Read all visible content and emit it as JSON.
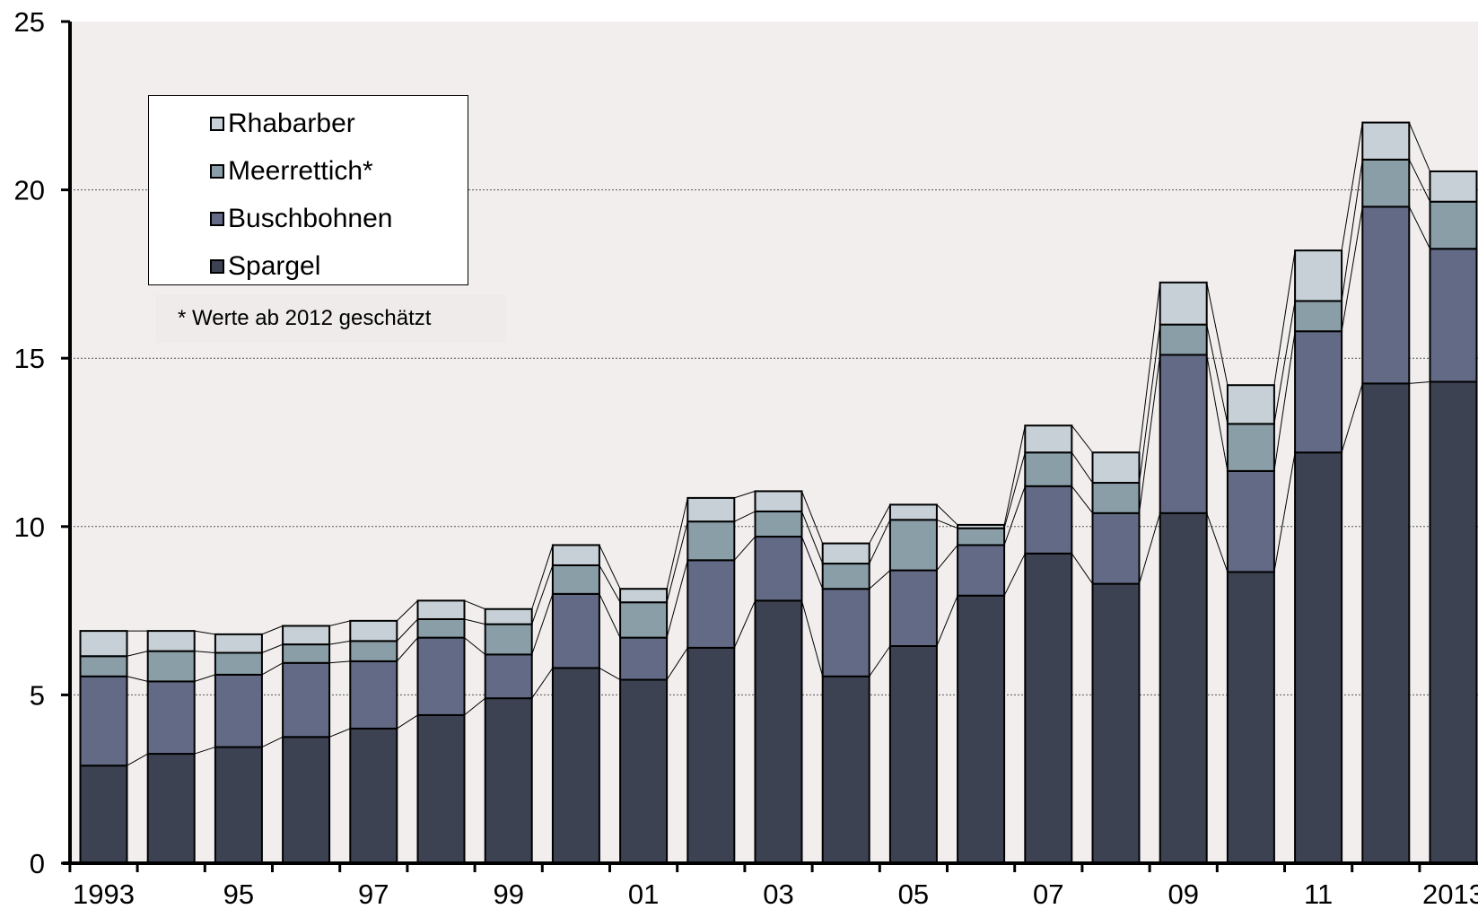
{
  "chart_data": {
    "type": "bar",
    "stacked": true,
    "categories": [
      "1993",
      "1994",
      "1995",
      "1996",
      "1997",
      "1998",
      "1999",
      "2000",
      "2001",
      "2002",
      "2003",
      "2004",
      "2005",
      "2006",
      "2007",
      "2008",
      "2009",
      "2010",
      "2011",
      "2012",
      "2013"
    ],
    "tick_labels": [
      "1993",
      "95",
      "97",
      "99",
      "01",
      "03",
      "05",
      "07",
      "09",
      "11",
      "2013"
    ],
    "tick_label_categories": [
      "1993",
      "1995",
      "1997",
      "1999",
      "2001",
      "2003",
      "2005",
      "2007",
      "2009",
      "2011",
      "2013"
    ],
    "series": [
      {
        "name": "Spargel",
        "color": "#3d4252",
        "values": [
          2.9,
          3.25,
          3.45,
          3.75,
          4.0,
          4.4,
          4.9,
          5.8,
          5.45,
          6.4,
          7.8,
          5.55,
          6.45,
          7.95,
          9.2,
          8.3,
          10.4,
          8.65,
          12.2,
          14.25,
          14.3
        ]
      },
      {
        "name": "Buschbohnen",
        "color": "#636a86",
        "values": [
          2.65,
          2.15,
          2.15,
          2.2,
          2.0,
          2.3,
          1.3,
          2.2,
          1.25,
          2.6,
          1.9,
          2.6,
          2.25,
          1.5,
          2.0,
          2.1,
          4.7,
          3.0,
          3.6,
          5.25,
          3.95
        ]
      },
      {
        "name": "Meerrettich*",
        "color": "#8a9ea8",
        "values": [
          0.6,
          0.9,
          0.65,
          0.55,
          0.6,
          0.55,
          0.9,
          0.85,
          1.05,
          1.15,
          0.75,
          0.75,
          1.5,
          0.5,
          1.0,
          0.9,
          0.9,
          1.4,
          0.9,
          1.4,
          1.4
        ]
      },
      {
        "name": "Rhabarber",
        "color": "#c6d0d6",
        "values": [
          0.75,
          0.6,
          0.55,
          0.55,
          0.6,
          0.55,
          0.45,
          0.6,
          0.4,
          0.7,
          0.6,
          0.6,
          0.45,
          0.1,
          0.8,
          0.9,
          1.25,
          1.15,
          1.5,
          1.1,
          0.9
        ]
      }
    ],
    "ylim": [
      0,
      25
    ],
    "yticks": [
      0,
      5,
      10,
      15,
      20,
      25
    ],
    "grid": true,
    "legend_position": "top-left",
    "footnote": "* Werte ab 2012 geschätzt"
  }
}
